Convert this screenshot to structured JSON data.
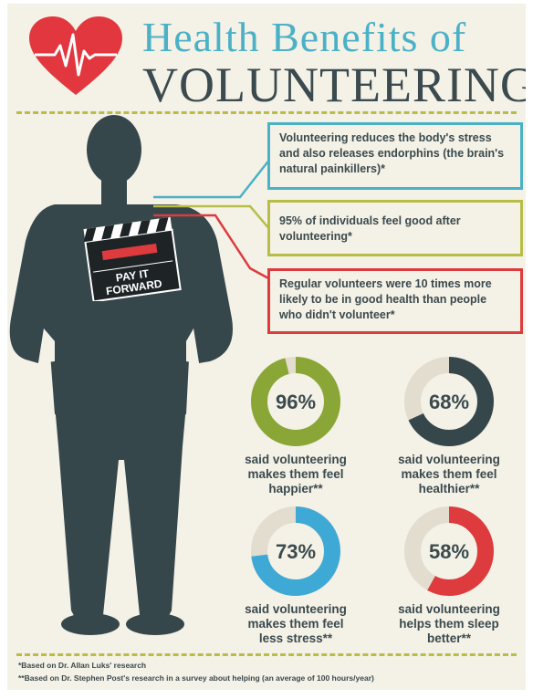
{
  "header": {
    "title_line1": "Health Benefits of",
    "title_line2": "VOLUNTEERING"
  },
  "clapboard": {
    "line1": "PAY IT",
    "line2": "FORWARD"
  },
  "callouts": [
    {
      "text": "Volunteering reduces the body's stress and also releases endorphins (the brain's natural painkillers)*",
      "color": "#4bb1c7"
    },
    {
      "text": "95% of individuals feel good after volunteering*",
      "color": "#b7bd46"
    },
    {
      "text": "Regular volunteers were 10 times more likely to be in good health than people who didn't volunteer*",
      "color": "#dd3b3e"
    }
  ],
  "stats": [
    {
      "value_label": "96%",
      "value": 96,
      "color": "#8aa636",
      "line1": "said volunteering",
      "line2": "makes them feel",
      "line3": "happier**"
    },
    {
      "value_label": "68%",
      "value": 68,
      "color": "#36474c",
      "line1": "said volunteering",
      "line2": "makes them feel",
      "line3": "healthier**"
    },
    {
      "value_label": "73%",
      "value": 73,
      "color": "#3fa9d5",
      "line1": "said volunteering",
      "line2": "makes them feel",
      "line3": "less stress**"
    },
    {
      "value_label": "58%",
      "value": 58,
      "color": "#dd3b3e",
      "line1": "said volunteering",
      "line2": "helps them sleep",
      "line3": "better**"
    }
  ],
  "footnotes": {
    "note1": "*Based on Dr. Allan Luks' research",
    "note2": "**Based on Dr. Stephen Post's research in a survey about helping (an average of 100 hours/year)"
  },
  "colors": {
    "background": "#f4f1e6",
    "silhouette": "#36474c",
    "heart": "#e2373f",
    "title_blue": "#4bb1c7",
    "title_dark": "#3b4a4e",
    "dash": "#b7bd46",
    "ring_track": "#e2ddce"
  },
  "icons": [
    "heart-icon",
    "person-silhouette",
    "clapboard-icon"
  ]
}
